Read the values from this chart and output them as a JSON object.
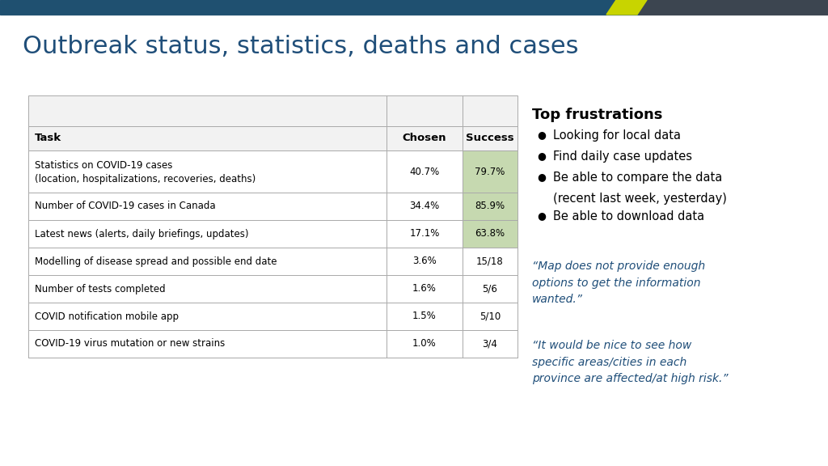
{
  "title": "Outbreak status, statistics, deaths and cases",
  "title_color": "#1F4E79",
  "title_fontsize": 22,
  "background_color": "#ffffff",
  "header_bar_color1": "#1F5070",
  "header_bar_color2": "#3C4550",
  "accent_color": "#C8D400",
  "table_headers": [
    "Task",
    "Chosen",
    "Success"
  ],
  "table_rows": [
    {
      "task_line1": "Statistics on COVID-19 cases",
      "task_line2": "(location, hospitalizations, recoveries, deaths)",
      "chosen": "40.7%",
      "success": "79.7%",
      "highlight": true,
      "two_lines": true
    },
    {
      "task_line1": "Number of COVID-19 cases in Canada",
      "task_line2": "",
      "chosen": "34.4%",
      "success": "85.9%",
      "highlight": true,
      "two_lines": false
    },
    {
      "task_line1": "Latest news (alerts, daily briefings, updates)",
      "task_line2": "",
      "chosen": "17.1%",
      "success": "63.8%",
      "highlight": true,
      "two_lines": false
    },
    {
      "task_line1": "Modelling of disease spread and possible end date",
      "task_line2": "",
      "chosen": "3.6%",
      "success": "15/18",
      "highlight": false,
      "two_lines": false
    },
    {
      "task_line1": "Number of tests completed",
      "task_line2": "",
      "chosen": "1.6%",
      "success": "5/6",
      "highlight": false,
      "two_lines": false
    },
    {
      "task_line1": "COVID notification mobile app",
      "task_line2": "",
      "chosen": "1.5%",
      "success": "5/10",
      "highlight": false,
      "two_lines": false
    },
    {
      "task_line1": "COVID-19 virus mutation or new strains",
      "task_line2": "",
      "chosen": "1.0%",
      "success": "3/4",
      "highlight": false,
      "two_lines": false
    }
  ],
  "highlight_color": "#C6D9B0",
  "table_border_color": "#AAAAAA",
  "top_frustrations_title": "Top frustrations",
  "frustrations": [
    "Looking for local data",
    "Find daily case updates",
    "Be able to compare the data",
    "(recent last week, yesterday)",
    "Be able to download data"
  ],
  "frustration_bullets": [
    true,
    true,
    true,
    false,
    true
  ],
  "quote1": "“Map does not provide enough\noptions to get the information\nwanted.”",
  "quote2": "“It would be nice to see how\nspecific areas/cities in each\nprovince are affected/at high risk.”",
  "quote_color": "#1F4E79"
}
